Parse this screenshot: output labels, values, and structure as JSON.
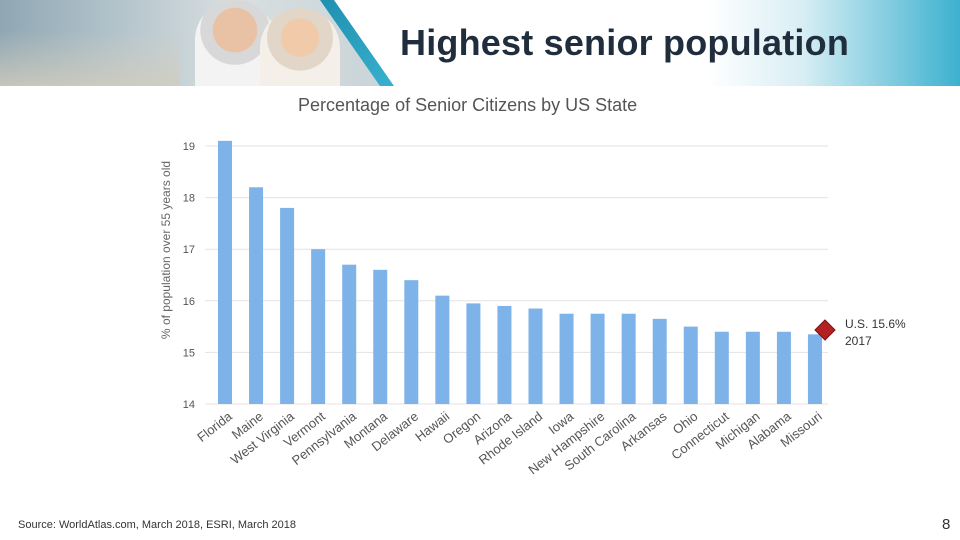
{
  "slide": {
    "title": "Highest senior population",
    "source": "Source:  WorldAtlas.com, March 2018, ESRI, March 2018",
    "page_number": "8"
  },
  "annotation": {
    "line1": "U.S. 15.6%",
    "line2": "2017",
    "marker_color": "#b22222",
    "marker_value": 15.6
  },
  "colors": {
    "bar": "#7db3e8",
    "grid": "#e3e3e3",
    "axis_text": "#555555",
    "title_text": "#555555"
  },
  "chart_data": {
    "type": "bar",
    "title": "Percentage of Senior Citizens by US State",
    "xlabel": "",
    "ylabel": "% of population over 55 years old",
    "ylim": [
      14,
      19
    ],
    "yticks": [
      14,
      15,
      16,
      17,
      18,
      19
    ],
    "grid": true,
    "categories": [
      "Florida",
      "Maine",
      "West Virginia",
      "Vermont",
      "Pennsylvania",
      "Montana",
      "Delaware",
      "Hawaii",
      "Oregon",
      "Arizona",
      "Rhode Island",
      "Iowa",
      "New Hampshire",
      "South Carolina",
      "Arkansas",
      "Ohio",
      "Connecticut",
      "Michigan",
      "Alabama",
      "Missouri"
    ],
    "values": [
      19.1,
      18.2,
      17.8,
      17.0,
      16.7,
      16.6,
      16.4,
      16.1,
      15.95,
      15.9,
      15.85,
      15.75,
      15.75,
      15.75,
      15.65,
      15.5,
      15.4,
      15.4,
      15.4,
      15.35
    ]
  }
}
